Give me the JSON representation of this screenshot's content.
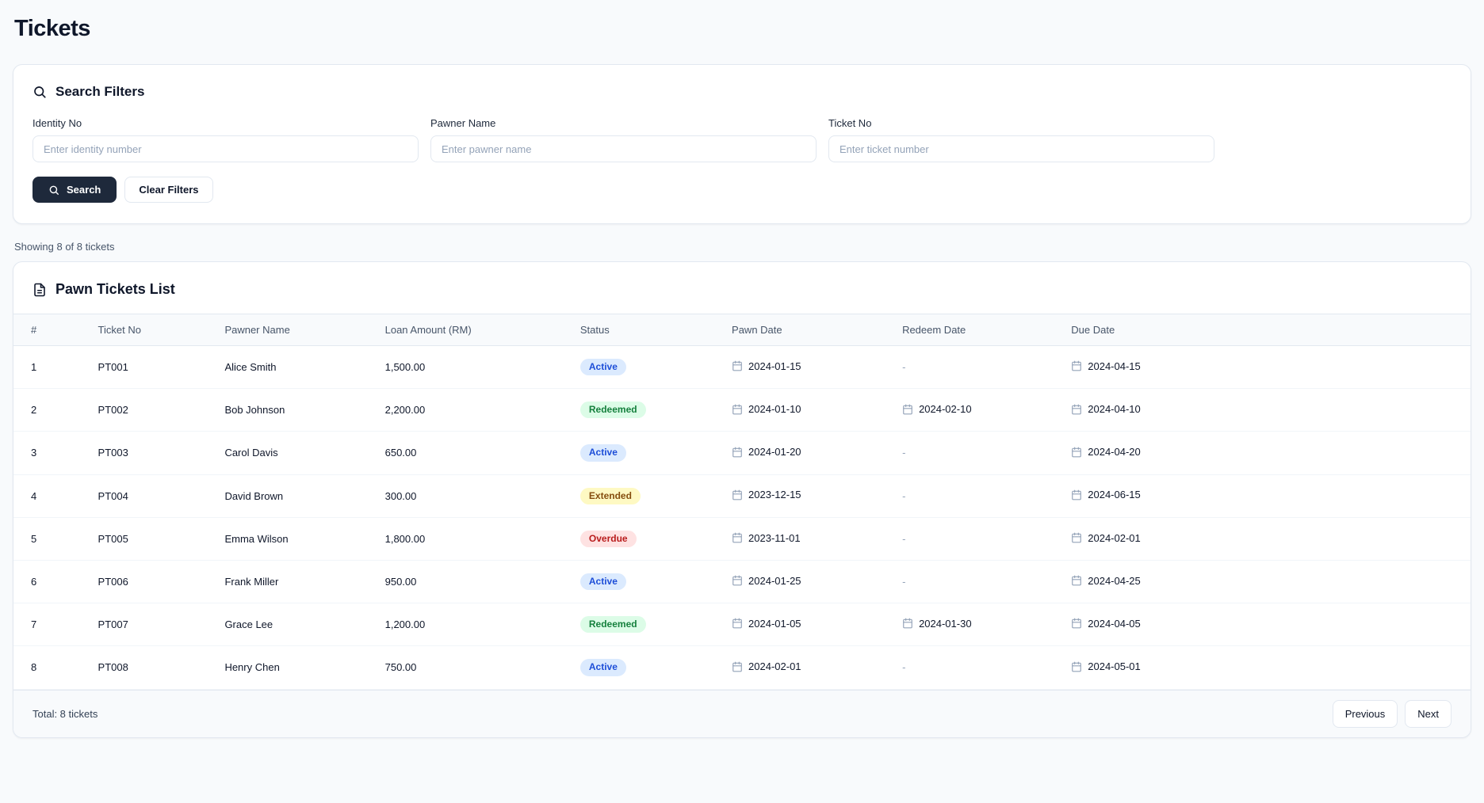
{
  "page": {
    "title": "Tickets",
    "showing_text": "Showing 8 of 8 tickets"
  },
  "filters": {
    "title": "Search Filters",
    "icon": "search-icon",
    "fields": [
      {
        "label": "Identity No",
        "placeholder": "Enter identity number"
      },
      {
        "label": "Pawner Name",
        "placeholder": "Enter pawner name"
      },
      {
        "label": "Ticket No",
        "placeholder": "Enter ticket number"
      }
    ],
    "search_button_label": "Search",
    "clear_button_label": "Clear Filters"
  },
  "table": {
    "title": "Pawn Tickets List",
    "icon": "file-text-icon",
    "date_icon": "calendar-icon",
    "columns": [
      "#",
      "Ticket No",
      "Pawner Name",
      "Loan Amount (RM)",
      "Status",
      "Pawn Date",
      "Redeem Date",
      "Due Date"
    ],
    "rows": [
      {
        "num": "1",
        "ticket_no": "PT001",
        "pawner": "Alice Smith",
        "amount": "1,500.00",
        "status": "Active",
        "pawn_date": "2024-01-15",
        "redeem_date": "-",
        "due_date": "2024-04-15"
      },
      {
        "num": "2",
        "ticket_no": "PT002",
        "pawner": "Bob Johnson",
        "amount": "2,200.00",
        "status": "Redeemed",
        "pawn_date": "2024-01-10",
        "redeem_date": "2024-02-10",
        "due_date": "2024-04-10"
      },
      {
        "num": "3",
        "ticket_no": "PT003",
        "pawner": "Carol Davis",
        "amount": "650.00",
        "status": "Active",
        "pawn_date": "2024-01-20",
        "redeem_date": "-",
        "due_date": "2024-04-20"
      },
      {
        "num": "4",
        "ticket_no": "PT004",
        "pawner": "David Brown",
        "amount": "300.00",
        "status": "Extended",
        "pawn_date": "2023-12-15",
        "redeem_date": "-",
        "due_date": "2024-06-15"
      },
      {
        "num": "5",
        "ticket_no": "PT005",
        "pawner": "Emma Wilson",
        "amount": "1,800.00",
        "status": "Overdue",
        "pawn_date": "2023-11-01",
        "redeem_date": "-",
        "due_date": "2024-02-01"
      },
      {
        "num": "6",
        "ticket_no": "PT006",
        "pawner": "Frank Miller",
        "amount": "950.00",
        "status": "Active",
        "pawn_date": "2024-01-25",
        "redeem_date": "-",
        "due_date": "2024-04-25"
      },
      {
        "num": "7",
        "ticket_no": "PT007",
        "pawner": "Grace Lee",
        "amount": "1,200.00",
        "status": "Redeemed",
        "pawn_date": "2024-01-05",
        "redeem_date": "2024-01-30",
        "due_date": "2024-04-05"
      },
      {
        "num": "8",
        "ticket_no": "PT008",
        "pawner": "Henry Chen",
        "amount": "750.00",
        "status": "Active",
        "pawn_date": "2024-02-01",
        "redeem_date": "-",
        "due_date": "2024-05-01"
      }
    ],
    "footer": {
      "total_text": "Total: 8 tickets",
      "previous_label": "Previous",
      "next_label": "Next"
    }
  },
  "colors": {
    "primary_button": "#1e293b",
    "status": {
      "Active": {
        "bg": "#dbeafe",
        "text": "#1d4ed8"
      },
      "Redeemed": {
        "bg": "#dcfce7",
        "text": "#15803d"
      },
      "Extended": {
        "bg": "#fef9c3",
        "text": "#854d0e"
      },
      "Overdue": {
        "bg": "#fee2e2",
        "text": "#b91c1c"
      }
    }
  }
}
